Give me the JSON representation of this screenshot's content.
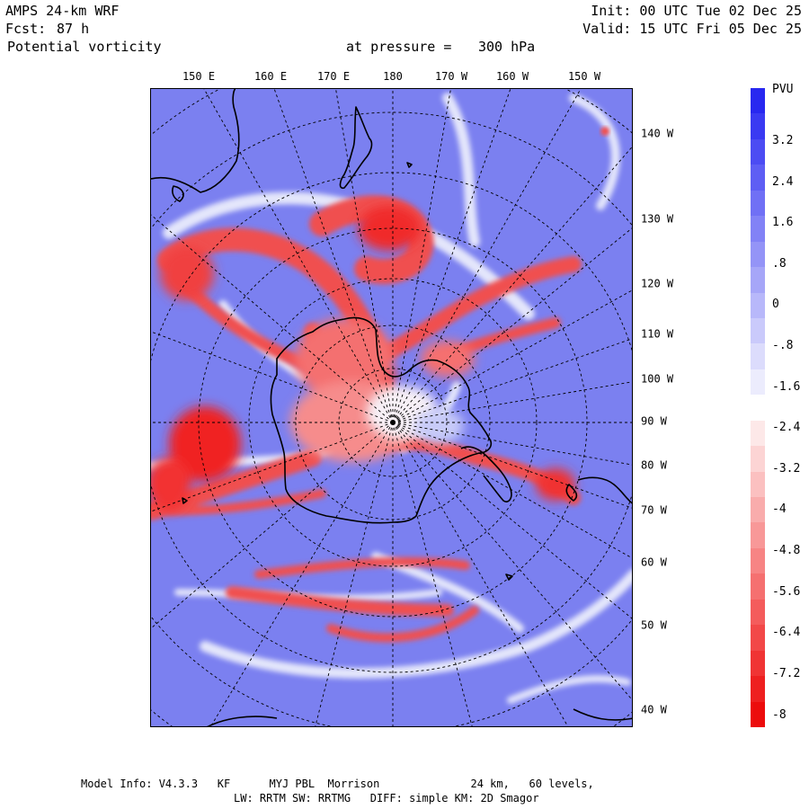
{
  "header": {
    "model": "AMPS 24-km WRF",
    "forecast_label": "Fcst:",
    "forecast_hours": "87 h",
    "field": "Potential vorticity",
    "init": "Init: 00 UTC Tue 02 Dec 25",
    "valid": "Valid: 15 UTC Fri 05 Dec 25",
    "level_label": "at pressure =",
    "level_value": "300 hPa"
  },
  "map": {
    "top_longitude_labels": [
      "150 E",
      "160 E",
      "170 E",
      "180",
      "170 W",
      "160 W",
      "150 W"
    ],
    "right_longitude_labels": [
      "140 W",
      "130 W",
      "120 W",
      "110 W",
      "100 W",
      "90 W",
      "80 W",
      "70 W",
      "60 W",
      "50 W",
      "40 W"
    ]
  },
  "colorbar": {
    "unit": "PVU",
    "labels": [
      "3.2",
      "2.4",
      "1.6",
      ".8",
      "0",
      "-.8",
      "-1.6",
      "-2.4",
      "-3.2",
      "-4",
      "-4.8",
      "-5.6",
      "-6.4",
      "-7.2",
      "-8"
    ],
    "colors": [
      "#2828f0",
      "#3a3af2",
      "#4c4cf3",
      "#5e5ef4",
      "#7070f5",
      "#8282f6",
      "#9494f7",
      "#a6a6f8",
      "#b8b8fa",
      "#cacafb",
      "#dcdcfc",
      "#ececfd",
      "#ffffff",
      "#fde8e8",
      "#fcd4d4",
      "#fbc0c0",
      "#f9acac",
      "#f89898",
      "#f78484",
      "#f57070",
      "#f45c5c",
      "#f24848",
      "#f03434",
      "#ee2020",
      "#ec0c0c"
    ]
  },
  "footer": {
    "line1": "Model Info: V4.3.3   KF      MYJ PBL  Morrison              24 km,   60 levels,",
    "line2": "LW: RRTM SW: RRTMG   DIFF: simple KM: 2D Smagor"
  }
}
